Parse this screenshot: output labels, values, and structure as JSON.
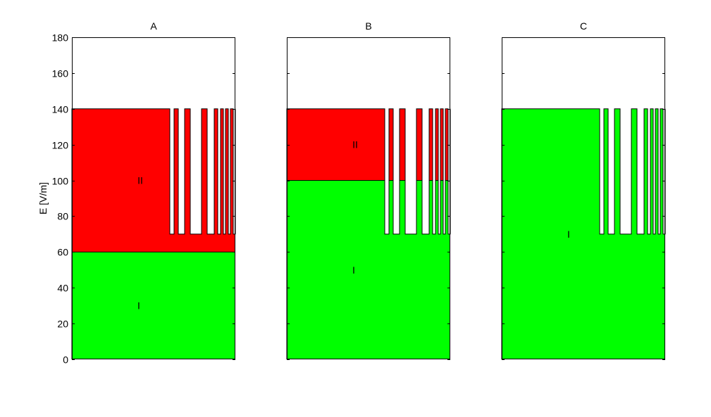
{
  "colors": {
    "zone_I": "#00ff00",
    "zone_II": "#ff0000",
    "background": "#ffffff",
    "axes": "#000000"
  },
  "chart_data": [
    {
      "type": "area",
      "title": "A",
      "ylabel": "E [V/m]",
      "ylim": [
        0,
        180
      ],
      "yticks": [
        0,
        20,
        40,
        60,
        80,
        100,
        120,
        140,
        160,
        180
      ],
      "ytick_labels": [
        "0",
        "20",
        "40",
        "60",
        "80",
        "100",
        "120",
        "140",
        "160",
        "180"
      ],
      "x_ticks_shown": false,
      "grid": false,
      "max_level": 140,
      "comb_level": 70,
      "zones": [
        {
          "name": "I",
          "color": "#00ff00",
          "from": 0,
          "to": 60
        },
        {
          "name": "II",
          "color": "#ff0000",
          "from": 60,
          "to": 140
        }
      ],
      "zone_labels": [
        {
          "text": "I",
          "y": 30
        },
        {
          "text": "II",
          "y": 100
        }
      ]
    },
    {
      "type": "area",
      "title": "B",
      "ylabel": "",
      "ylim": [
        0,
        180
      ],
      "yticks": [
        0,
        20,
        40,
        60,
        80,
        100,
        120,
        140,
        160,
        180
      ],
      "ytick_labels": [],
      "x_ticks_shown": false,
      "grid": false,
      "max_level": 140,
      "comb_level": 70,
      "zones": [
        {
          "name": "I",
          "color": "#00ff00",
          "from": 0,
          "to": 100
        },
        {
          "name": "II",
          "color": "#ff0000",
          "from": 100,
          "to": 140
        }
      ],
      "zone_labels": [
        {
          "text": "I",
          "y": 50
        },
        {
          "text": "II",
          "y": 120
        }
      ]
    },
    {
      "type": "area",
      "title": "C",
      "ylabel": "",
      "ylim": [
        0,
        180
      ],
      "yticks": [
        0,
        20,
        40,
        60,
        80,
        100,
        120,
        140,
        160,
        180
      ],
      "ytick_labels": [],
      "x_ticks_shown": false,
      "grid": false,
      "max_level": 140,
      "comb_level": 70,
      "zones": [
        {
          "name": "I",
          "color": "#00ff00",
          "from": 0,
          "to": 140
        }
      ],
      "zone_labels": [
        {
          "text": "I",
          "y": 70
        }
      ]
    }
  ]
}
